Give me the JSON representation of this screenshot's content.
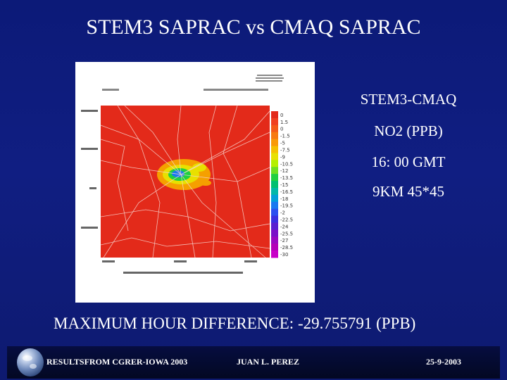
{
  "slide": {
    "title": "STEM3 SAPRAC vs CMAQ SAPRAC",
    "side_labels": [
      "STEM3-CMAQ",
      "NO2 (PPB)",
      "16: 00 GMT",
      "9KM 45*45"
    ],
    "max_difference": "MAXIMUM HOUR DIFFERENCE:   -29.755791 (PPB)"
  },
  "footer": {
    "left": "RESULTSFROM CGRER-IOWA 2003",
    "center": "JUAN L. PEREZ",
    "right": "25-9-2003"
  },
  "plot": {
    "legend_values": [
      "0",
      "1.5",
      "0",
      "-1.5",
      "-5",
      "-7.5",
      "-9",
      "-10.5",
      "-12",
      "-13.5",
      "-15",
      "-16.5",
      "-18",
      "-19.5",
      "-2",
      "-22.5",
      "-24",
      "-25.5",
      "-27",
      "-28.5",
      "-30"
    ],
    "legend_colors": [
      "#e32a1a",
      "#f04020",
      "#f45a18",
      "#f77a10",
      "#f99a08",
      "#f5c000",
      "#e8e000",
      "#b4f000",
      "#6ee020",
      "#20d040",
      "#00c070",
      "#00b8a8",
      "#00a0d8",
      "#1a78f0",
      "#2a50f0",
      "#3a30e0",
      "#5a20d0",
      "#7a10c8",
      "#9a08c0",
      "#b400b8",
      "#c800c8"
    ],
    "accent_colors": {
      "background": "#101e82",
      "field": "#e32a1a"
    }
  }
}
